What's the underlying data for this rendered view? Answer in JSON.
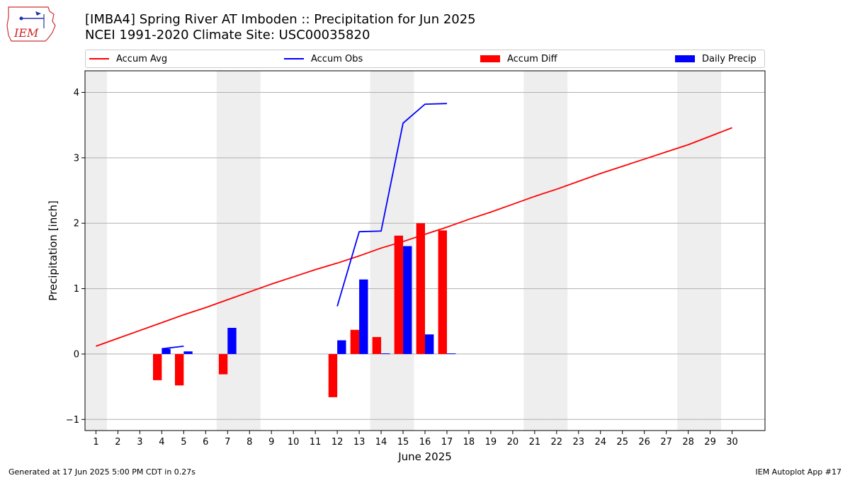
{
  "header": {
    "title_line1": "[IMBA4] Spring River  AT Imboden :: Precipitation for Jun 2025",
    "title_line2": "NCEI 1991-2020 Climate Site: USC00035820",
    "logo_text": "IEM"
  },
  "footer": {
    "left": "Generated at 17 Jun 2025 5:00 PM CDT in 0.27s",
    "right": "IEM Autoplot App #17"
  },
  "colors": {
    "avg": "#ff0000",
    "obs": "#0000ff",
    "diff": "#ff0000",
    "daily": "#0000ff",
    "weekend": "#eeeeee",
    "grid": "#b0b0b0"
  },
  "chart_data": {
    "type": "bar",
    "xlabel": "June 2025",
    "ylabel": "Precipitation [inch]",
    "xlim": [
      0.5,
      31.5
    ],
    "ylim": [
      -1.17,
      4.33
    ],
    "yticks": [
      -1,
      0,
      1,
      2,
      3,
      4
    ],
    "grid": "horizontal",
    "legend_position": "top",
    "weekend_days": [
      1,
      7,
      8,
      14,
      15,
      21,
      22,
      28,
      29
    ],
    "x": [
      1,
      2,
      3,
      4,
      5,
      6,
      7,
      8,
      9,
      10,
      11,
      12,
      13,
      14,
      15,
      16,
      17,
      18,
      19,
      20,
      21,
      22,
      23,
      24,
      25,
      26,
      27,
      28,
      29,
      30
    ],
    "series": [
      {
        "name": "Accum Avg",
        "type": "line",
        "color": "#ff0000",
        "x": [
          1,
          2,
          3,
          4,
          5,
          6,
          7,
          8,
          9,
          10,
          11,
          12,
          13,
          14,
          15,
          16,
          17,
          18,
          19,
          20,
          21,
          22,
          23,
          24,
          25,
          26,
          27,
          28,
          29,
          30
        ],
        "values": [
          0.12,
          0.24,
          0.36,
          0.48,
          0.6,
          0.71,
          0.83,
          0.95,
          1.07,
          1.18,
          1.29,
          1.39,
          1.5,
          1.62,
          1.72,
          1.83,
          1.94,
          2.06,
          2.17,
          2.29,
          2.41,
          2.52,
          2.64,
          2.76,
          2.87,
          2.98,
          3.09,
          3.2,
          3.33,
          3.46
        ]
      },
      {
        "name": "Accum Obs",
        "type": "line",
        "color": "#0000ff",
        "segments": [
          {
            "x": [
              4,
              5
            ],
            "values": [
              0.08,
              0.12
            ]
          },
          {
            "x": [
              12,
              13,
              14,
              15,
              16,
              17
            ],
            "values": [
              0.73,
              1.87,
              1.88,
              3.53,
              3.82,
              3.83
            ]
          }
        ]
      },
      {
        "name": "Accum Diff",
        "type": "bar",
        "color": "#ff0000",
        "x": [
          4,
          5,
          7,
          12,
          13,
          14,
          15,
          16,
          17
        ],
        "values": [
          -0.4,
          -0.48,
          -0.31,
          -0.66,
          0.37,
          0.26,
          1.81,
          2.0,
          1.89
        ]
      },
      {
        "name": "Daily Precip",
        "type": "bar",
        "color": "#0000ff",
        "x": [
          4,
          5,
          7,
          12,
          13,
          14,
          15,
          16,
          17
        ],
        "values": [
          0.08,
          0.04,
          0.4,
          0.21,
          1.14,
          0.01,
          1.65,
          0.3,
          0.01
        ]
      }
    ]
  }
}
